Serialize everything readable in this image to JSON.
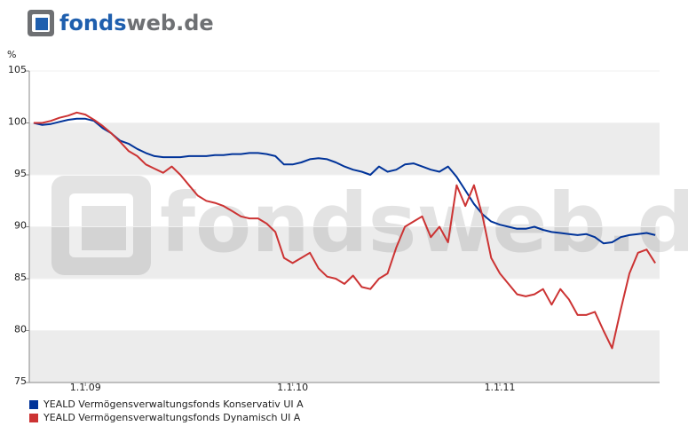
{
  "logo": {
    "brand": "fonds",
    "suffix": "web.de"
  },
  "chart_data": {
    "type": "line",
    "ylabel": "%",
    "categories": [
      null,
      null,
      null,
      null,
      null,
      null,
      "1.1.09",
      null,
      null,
      null,
      null,
      null,
      null,
      null,
      null,
      null,
      null,
      null,
      null,
      null,
      null,
      null,
      null,
      null,
      null,
      null,
      null,
      null,
      null,
      null,
      "1.1.10",
      null,
      null,
      null,
      null,
      null,
      null,
      null,
      null,
      null,
      null,
      null,
      null,
      null,
      null,
      null,
      null,
      null,
      null,
      null,
      null,
      null,
      null,
      null,
      "1.1.11",
      null,
      null,
      null,
      null,
      null,
      null,
      null,
      null,
      null,
      null,
      null,
      null,
      null,
      null,
      null,
      null,
      null,
      null
    ],
    "series": [
      {
        "name": "YEALD Vermögensverwaltungsfonds Konservativ UI A",
        "color": "#003399",
        "values": [
          100,
          99.8,
          99.9,
          100.1,
          100.3,
          100.4,
          100.4,
          100.2,
          99.5,
          99,
          98.3,
          98,
          97.5,
          97.1,
          96.8,
          96.7,
          96.7,
          96.7,
          96.8,
          96.8,
          96.8,
          96.9,
          96.9,
          97,
          97,
          97.1,
          97.1,
          97,
          96.8,
          96,
          96,
          96.2,
          96.5,
          96.6,
          96.5,
          96.2,
          95.8,
          95.5,
          95.3,
          95,
          95.8,
          95.3,
          95.5,
          96,
          96.1,
          95.8,
          95.5,
          95.3,
          95.8,
          94.8,
          93.5,
          92.2,
          91.2,
          90.5,
          90.2,
          90,
          89.8,
          89.8,
          90,
          89.7,
          89.5,
          89.4,
          89.3,
          89.2,
          89.3,
          89,
          88.4,
          88.5,
          89,
          89.2,
          89.3,
          89.4,
          89.2
        ]
      },
      {
        "name": "YEALD Vermögensverwaltungsfonds Dynamisch UI A",
        "color": "#cc3333",
        "values": [
          100,
          100,
          100.2,
          100.5,
          100.7,
          101,
          100.8,
          100.3,
          99.7,
          99,
          98.2,
          97.3,
          96.8,
          96,
          95.6,
          95.2,
          95.8,
          95,
          94,
          93,
          92.5,
          92.3,
          92,
          91.5,
          91,
          90.8,
          90.8,
          90.3,
          89.5,
          87,
          86.5,
          87,
          87.5,
          86,
          85.2,
          85,
          84.5,
          85.3,
          84.2,
          84,
          85,
          85.5,
          88,
          90,
          90.5,
          91,
          89,
          90,
          88.5,
          94,
          92,
          94,
          91,
          87,
          85.5,
          84.5,
          83.5,
          83.3,
          83.5,
          84,
          82.5,
          84,
          83,
          81.5,
          81.5,
          81.8,
          80,
          78.3,
          82,
          85.5,
          87.5,
          87.8,
          86.5
        ]
      }
    ],
    "ylim": [
      75,
      105
    ],
    "yticks": [
      75,
      80,
      85,
      90,
      95,
      100,
      105
    ],
    "grid": true
  }
}
